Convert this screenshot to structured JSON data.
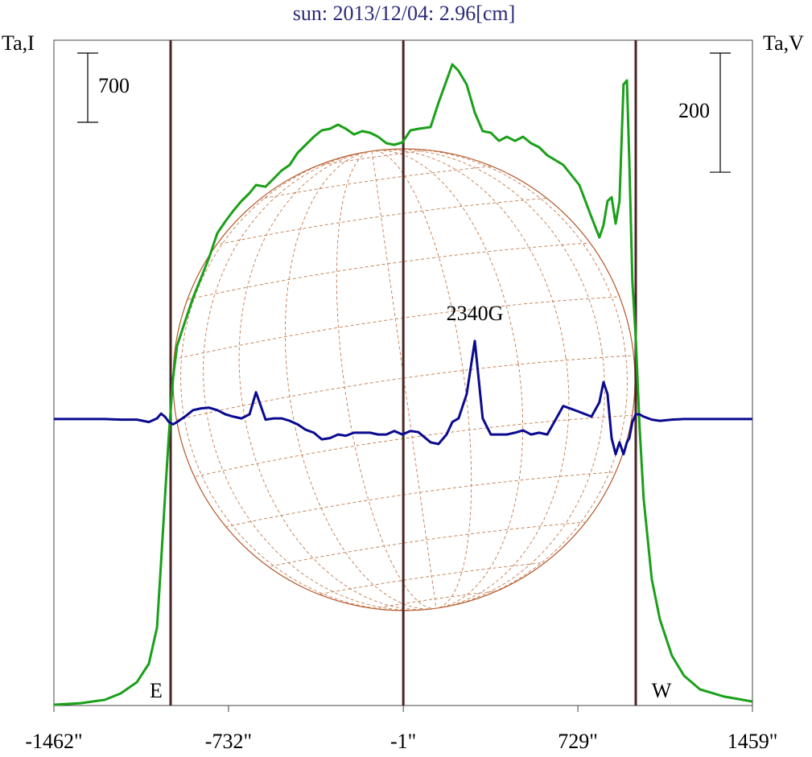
{
  "chart_data": {
    "type": "line",
    "title": "sun: 2013/12/04: 2.96[cm]",
    "ylabel": "Ta,I",
    "y2label": "Ta,V",
    "annotations": [
      "E",
      "W",
      "2340G"
    ],
    "scale_bars": [
      {
        "value": 700,
        "axis": "y"
      },
      {
        "value": 200,
        "axis": "y2"
      }
    ],
    "vlines": [
      -974,
      -1,
      971
    ],
    "xlim": [
      -1462,
      1459
    ],
    "xticks": [
      {
        "value": -1462,
        "label": "-1462\""
      },
      {
        "value": -732,
        "label": "-732\""
      },
      {
        "value": -1,
        "label": "-1\""
      },
      {
        "value": 729,
        "label": "729\""
      },
      {
        "value": 1459,
        "label": "1459\""
      }
    ],
    "ylim": [
      0,
      6732
    ],
    "y2lim": [
      -481,
      636
    ],
    "x": [
      -1462,
      -1351,
      -1250,
      -1183,
      -1115,
      -1065,
      -1031,
      -1014,
      -998,
      -981,
      -964,
      -947,
      -914,
      -880,
      -846,
      -813,
      -779,
      -745,
      -712,
      -678,
      -644,
      -617,
      -577,
      -543,
      -510,
      -476,
      -443,
      -409,
      -375,
      -342,
      -308,
      -274,
      -241,
      -207,
      -173,
      -140,
      -106,
      -72,
      -39,
      -5,
      29,
      62,
      113,
      146,
      180,
      204,
      230,
      264,
      298,
      331,
      365,
      399,
      432,
      466,
      500,
      533,
      567,
      601,
      668,
      735,
      786,
      819,
      836,
      853,
      870,
      887,
      903,
      920,
      934,
      944,
      957,
      971,
      987,
      1004,
      1038,
      1072,
      1122,
      1173,
      1240,
      1341,
      1458
    ],
    "series": [
      {
        "color": "#1aa01a",
        "values": [
          8,
          24,
          57,
          122,
          236,
          423,
          790,
          1441,
          2092,
          2743,
          3313,
          3639,
          3883,
          4127,
          4330,
          4534,
          4778,
          4900,
          5006,
          5104,
          5185,
          5267,
          5250,
          5332,
          5413,
          5470,
          5592,
          5674,
          5755,
          5820,
          5836,
          5877,
          5836,
          5779,
          5812,
          5796,
          5755,
          5690,
          5674,
          5698,
          5820,
          5836,
          5853,
          6097,
          6325,
          6488,
          6422,
          6284,
          5999,
          5812,
          5796,
          5714,
          5755,
          5714,
          5755,
          5690,
          5649,
          5568,
          5470,
          5267,
          4941,
          4737,
          4860,
          5104,
          5144,
          4876,
          5104,
          6284,
          6325,
          5511,
          4290,
          3720,
          2825,
          2092,
          1278,
          871,
          505,
          301,
          163,
          90,
          41
        ]
      },
      {
        "color": "#0a0a90",
        "axis": "y2",
        "values": [
          0,
          0,
          0,
          -1,
          -1,
          -5,
          1,
          9,
          4,
          -5,
          -9,
          -5,
          4,
          15,
          18,
          19,
          15,
          8,
          4,
          1,
          8,
          45,
          -1,
          1,
          1,
          -3,
          -9,
          -18,
          -23,
          -34,
          -32,
          -26,
          -28,
          -23,
          -23,
          -23,
          -26,
          -26,
          -20,
          -26,
          -20,
          -22,
          -39,
          -42,
          -26,
          -5,
          1,
          42,
          131,
          1,
          -26,
          -26,
          -26,
          -23,
          -19,
          -26,
          -23,
          -26,
          22,
          12,
          4,
          28,
          62,
          42,
          -32,
          -59,
          -39,
          -59,
          -39,
          -32,
          -5,
          8,
          8,
          4,
          -1,
          -3,
          -1,
          0,
          0,
          0,
          0
        ]
      }
    ]
  }
}
